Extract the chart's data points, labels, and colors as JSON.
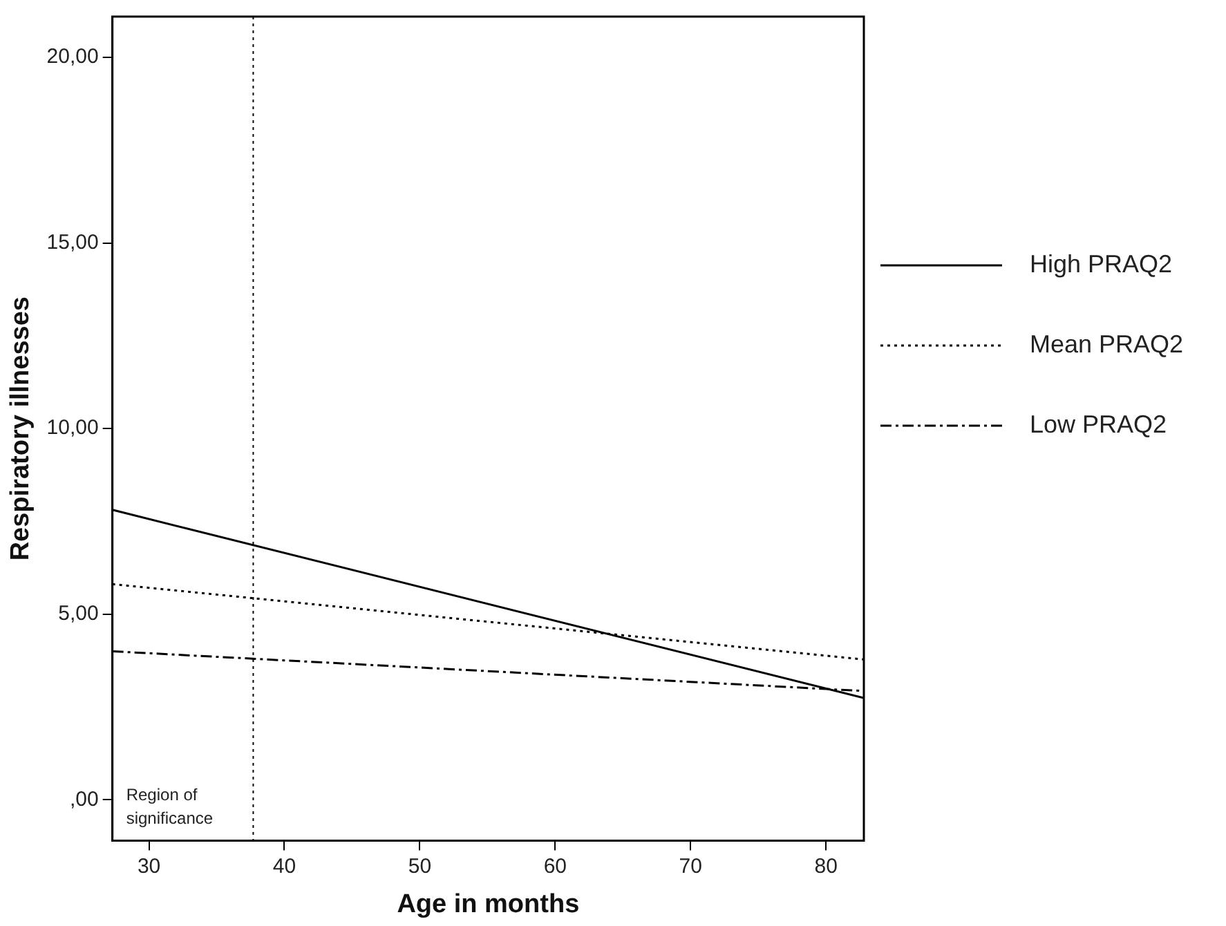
{
  "chart_data": {
    "type": "line",
    "xlabel": "Age in months",
    "ylabel": "Respiratory illnesses",
    "xlim": [
      27.3,
      82.8
    ],
    "xticks": [
      30,
      40,
      50,
      60,
      70,
      80
    ],
    "ylim": [
      -1.1,
      21.1
    ],
    "yticks": [
      {
        "value": 0,
        "label": ",00"
      },
      {
        "value": 5,
        "label": "5,00"
      },
      {
        "value": 10,
        "label": "10,00"
      },
      {
        "value": 15,
        "label": "15,00"
      },
      {
        "value": 20,
        "label": "20,00"
      }
    ],
    "x": [
      27.3,
      82.8
    ],
    "series": [
      {
        "name": "High PRAQ2",
        "color": "#000000",
        "line_style": "solid",
        "values": [
          7.81,
          2.74
        ]
      },
      {
        "name": "Mean PRAQ2",
        "color": "#000000",
        "line_style": "dotted",
        "values": [
          5.81,
          3.78
        ]
      },
      {
        "name": "Low PRAQ2",
        "color": "#000000",
        "line_style": "dashdot",
        "values": [
          4.0,
          2.93
        ]
      }
    ],
    "ref_lines": [
      {
        "axis": "x",
        "value": 37.7,
        "label": "Region of significance",
        "line_style": "dotted",
        "color": "#000000"
      }
    ],
    "grid": false,
    "legend": "right",
    "marker": "none"
  }
}
